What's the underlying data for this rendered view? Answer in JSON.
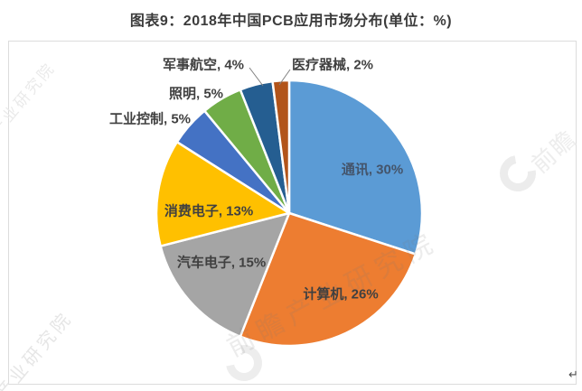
{
  "title": "图表9：2018年中国PCB应用市场分布(单位：%)",
  "chart_data": {
    "type": "pie",
    "title": "2018年中国PCB应用市场分布",
    "unit": "%",
    "start_angle_deg": 0,
    "direction": "clockwise",
    "legend_position": "none",
    "label_format": "{name}, {value}%",
    "series": [
      {
        "name": "通讯",
        "value": 30,
        "color": "#5B9BD5",
        "label_position": "inside"
      },
      {
        "name": "计算机",
        "value": 26,
        "color": "#ED7D31",
        "label_position": "inside"
      },
      {
        "name": "汽车电子",
        "value": 15,
        "color": "#A5A5A5",
        "label_position": "inside"
      },
      {
        "name": "消费电子",
        "value": 13,
        "color": "#FFC000",
        "label_position": "inside"
      },
      {
        "name": "工业控制",
        "value": 5,
        "color": "#4472C4",
        "label_position": "outside"
      },
      {
        "name": "照明",
        "value": 5,
        "color": "#70AD47",
        "label_position": "outside"
      },
      {
        "name": "军事航空",
        "value": 4,
        "color": "#255E91",
        "label_position": "outside"
      },
      {
        "name": "医疗器械",
        "value": 2,
        "color": "#B2541A",
        "label_position": "outside"
      }
    ]
  },
  "label_colors": {
    "inside_on_blue": "#44546A",
    "default": "#404040"
  },
  "leader_line_color": "#808080",
  "watermarks": {
    "brand": "前瞻",
    "org": "产业研究院",
    "full": "前瞻产业研究院"
  },
  "misc": {
    "return_mark": "↵"
  }
}
